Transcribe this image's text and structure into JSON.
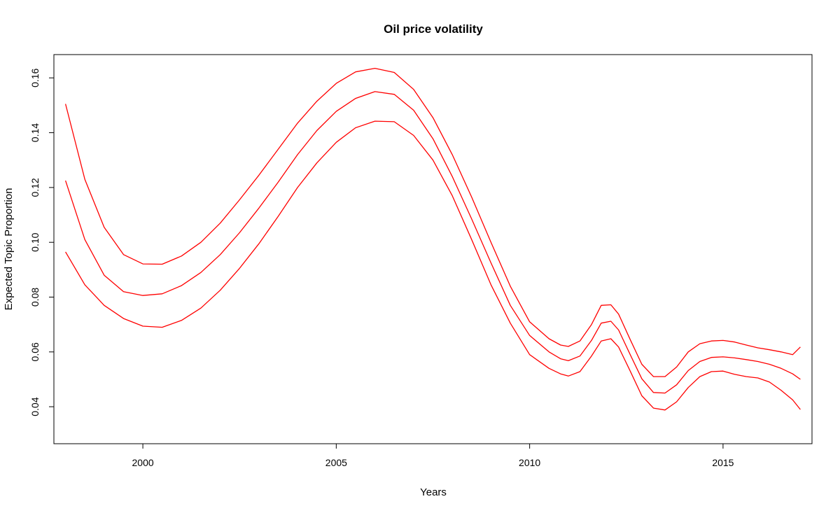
{
  "chart_data": {
    "type": "line",
    "title": "Oil price volatility",
    "xlabel": "Years",
    "ylabel": "Expected Topic Proportion",
    "xlim": [
      1997.7,
      2017.3
    ],
    "ylim": [
      0.0265,
      0.1685
    ],
    "xticks": [
      2000,
      2005,
      2010,
      2015
    ],
    "xtick_labels": [
      "2000",
      "2005",
      "2010",
      "2015"
    ],
    "yticks": [
      0.04,
      0.06,
      0.08,
      0.1,
      0.12,
      0.14,
      0.16
    ],
    "ytick_labels": [
      "0.04",
      "0.06",
      "0.08",
      "0.10",
      "0.12",
      "0.14",
      "0.16"
    ],
    "grid": false,
    "color": "#ff0000",
    "x": [
      1998,
      1998.5,
      1999,
      1999.5,
      2000,
      2000.5,
      2001,
      2001.5,
      2002,
      2002.5,
      2003,
      2003.5,
      2004,
      2004.5,
      2005,
      2005.5,
      2006,
      2006.5,
      2007,
      2007.5,
      2008,
      2008.5,
      2009,
      2009.5,
      2010,
      2010.5,
      2010.8,
      2011,
      2011.3,
      2011.6,
      2011.85,
      2012.1,
      2012.3,
      2012.6,
      2012.9,
      2013.2,
      2013.5,
      2013.8,
      2014.1,
      2014.4,
      2014.7,
      2015,
      2015.3,
      2015.6,
      2015.9,
      2016.2,
      2016.5,
      2016.8,
      2017
    ],
    "series": [
      {
        "values": [
          0.1505,
          0.123,
          0.1055,
          0.0955,
          0.0921,
          0.092,
          0.095,
          0.1,
          0.107,
          0.1155,
          0.1245,
          0.134,
          0.1435,
          0.1515,
          0.158,
          0.1622,
          0.1635,
          0.162,
          0.1558,
          0.1455,
          0.132,
          0.1165,
          0.1,
          0.084,
          0.071,
          0.0648,
          0.0625,
          0.062,
          0.064,
          0.07,
          0.077,
          0.0772,
          0.0738,
          0.0645,
          0.0555,
          0.051,
          0.051,
          0.0545,
          0.06,
          0.063,
          0.064,
          0.0642,
          0.0636,
          0.0625,
          0.0615,
          0.0608,
          0.06,
          0.059,
          0.0618
        ]
      },
      {
        "values": [
          0.1225,
          0.101,
          0.088,
          0.082,
          0.0806,
          0.0812,
          0.0842,
          0.089,
          0.0955,
          0.1035,
          0.1125,
          0.122,
          0.132,
          0.1408,
          0.1478,
          0.1525,
          0.155,
          0.154,
          0.1482,
          0.1378,
          0.124,
          0.1085,
          0.0925,
          0.077,
          0.066,
          0.06,
          0.0575,
          0.0568,
          0.0585,
          0.0642,
          0.0705,
          0.0712,
          0.068,
          0.059,
          0.0502,
          0.0452,
          0.045,
          0.048,
          0.0532,
          0.0565,
          0.058,
          0.0582,
          0.0578,
          0.0572,
          0.0565,
          0.0555,
          0.054,
          0.052,
          0.05
        ]
      },
      {
        "values": [
          0.0965,
          0.0845,
          0.077,
          0.0722,
          0.0694,
          0.069,
          0.0715,
          0.076,
          0.0825,
          0.0905,
          0.0995,
          0.1095,
          0.12,
          0.129,
          0.1365,
          0.1418,
          0.1442,
          0.144,
          0.139,
          0.13,
          0.117,
          0.101,
          0.0845,
          0.0705,
          0.059,
          0.054,
          0.052,
          0.0512,
          0.0528,
          0.0585,
          0.064,
          0.0648,
          0.0618,
          0.053,
          0.044,
          0.0395,
          0.0388,
          0.0418,
          0.047,
          0.051,
          0.0528,
          0.053,
          0.0518,
          0.051,
          0.0505,
          0.049,
          0.046,
          0.0425,
          0.039
        ]
      }
    ]
  }
}
